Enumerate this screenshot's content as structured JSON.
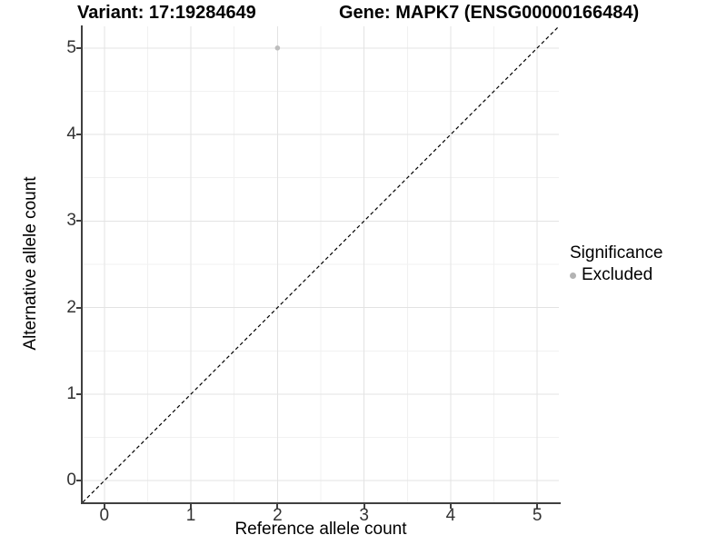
{
  "chart_data": {
    "type": "scatter",
    "title_left": "Variant: 17:19284649",
    "title_right": "Gene: MAPK7 (ENSG00000166484)",
    "xlabel": "Reference allele count",
    "ylabel": "Alternative allele count",
    "xlim": [
      -0.25,
      5.25
    ],
    "ylim": [
      -0.25,
      5.25
    ],
    "x_ticks": [
      0,
      1,
      2,
      3,
      4,
      5
    ],
    "y_ticks": [
      0,
      1,
      2,
      3,
      4,
      5
    ],
    "x_minor_ticks": [
      0.5,
      1.5,
      2.5,
      3.5,
      4.5
    ],
    "y_minor_ticks": [
      0.5,
      1.5,
      2.5,
      3.5,
      4.5
    ],
    "grid": "major+minor",
    "legend_position": "right",
    "reference_line": {
      "kind": "identity",
      "equation": "y = x",
      "style": "dashed",
      "color": "#000000"
    },
    "series": [
      {
        "name": "Excluded",
        "color": "#bdbdbd",
        "points": [
          [
            2,
            5
          ]
        ]
      }
    ],
    "legend": {
      "title": "Significance",
      "entries": [
        {
          "label": "Excluded",
          "color": "#b3b3b3",
          "marker": "circle"
        }
      ]
    }
  },
  "colors": {
    "background": "#ffffff",
    "grid_major": "#e3e3e3",
    "grid_minor": "#f1f1f1",
    "axis_line": "#404040",
    "tick_label": "#333333",
    "point": "#bdbdbd"
  }
}
